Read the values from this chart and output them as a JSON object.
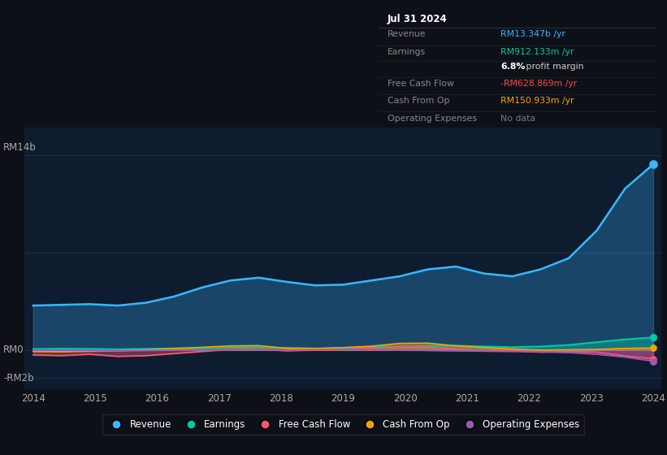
{
  "bg_color": "#0d1117",
  "chart_bg": "#0e1c2f",
  "grid_color": "#1a3050",
  "x_labels": [
    "2014",
    "2015",
    "2016",
    "2017",
    "2018",
    "2019",
    "2020",
    "2021",
    "2022",
    "2023",
    "2024"
  ],
  "ylim": [
    -2.8,
    16.0
  ],
  "legend": [
    {
      "label": "Revenue",
      "color": "#38b6ff"
    },
    {
      "label": "Earnings",
      "color": "#00c9a7"
    },
    {
      "label": "Free Cash Flow",
      "color": "#ff5577"
    },
    {
      "label": "Cash From Op",
      "color": "#f0a500"
    },
    {
      "label": "Operating Expenses",
      "color": "#9b59b6"
    }
  ],
  "info_box_title": "Jul 31 2024",
  "info_rows": [
    {
      "label": "Revenue",
      "value": "RM13.347b /yr",
      "value_color": "#38b6ff",
      "sep": true
    },
    {
      "label": "Earnings",
      "value": "RM912.133m /yr",
      "value_color": "#00c9a7",
      "sep": false
    },
    {
      "label": "",
      "value": "6.8% profit margin",
      "value_color": "#cccccc",
      "sep": true,
      "bold_prefix": "6.8%"
    },
    {
      "label": "Free Cash Flow",
      "value": "-RM628.869m /yr",
      "value_color": "#ff4444",
      "sep": true
    },
    {
      "label": "Cash From Op",
      "value": "RM150.933m /yr",
      "value_color": "#f0a500",
      "sep": true
    },
    {
      "label": "Operating Expenses",
      "value": "No data",
      "value_color": "#777777",
      "sep": false
    }
  ],
  "revenue": [
    3.2,
    3.25,
    3.3,
    3.2,
    3.4,
    3.85,
    4.5,
    5.0,
    5.2,
    4.9,
    4.65,
    4.7,
    5.0,
    5.3,
    5.8,
    6.0,
    5.5,
    5.3,
    5.8,
    6.6,
    8.6,
    11.6,
    13.35
  ],
  "earnings": [
    0.08,
    0.1,
    0.09,
    0.06,
    0.09,
    0.13,
    0.16,
    0.19,
    0.21,
    0.16,
    0.12,
    0.16,
    0.21,
    0.26,
    0.3,
    0.32,
    0.26,
    0.21,
    0.26,
    0.37,
    0.57,
    0.77,
    0.91
  ],
  "free_cash_flow": [
    -0.35,
    -0.4,
    -0.3,
    -0.45,
    -0.4,
    -0.25,
    -0.1,
    0.05,
    0.05,
    -0.05,
    0.0,
    0.05,
    0.15,
    0.25,
    0.22,
    0.08,
    -0.05,
    -0.05,
    -0.15,
    -0.1,
    -0.15,
    -0.42,
    -0.63
  ],
  "cash_from_op": [
    -0.1,
    -0.12,
    -0.08,
    -0.05,
    0.02,
    0.1,
    0.2,
    0.3,
    0.32,
    0.12,
    0.1,
    0.18,
    0.28,
    0.48,
    0.5,
    0.3,
    0.18,
    0.08,
    0.0,
    0.02,
    0.05,
    0.12,
    0.15
  ],
  "op_expenses": [
    0.0,
    -0.02,
    -0.03,
    -0.06,
    -0.03,
    0.0,
    0.0,
    0.03,
    0.03,
    0.0,
    0.02,
    0.05,
    0.05,
    0.0,
    -0.03,
    -0.06,
    -0.08,
    -0.1,
    -0.12,
    -0.18,
    -0.3,
    -0.5,
    -0.8
  ]
}
